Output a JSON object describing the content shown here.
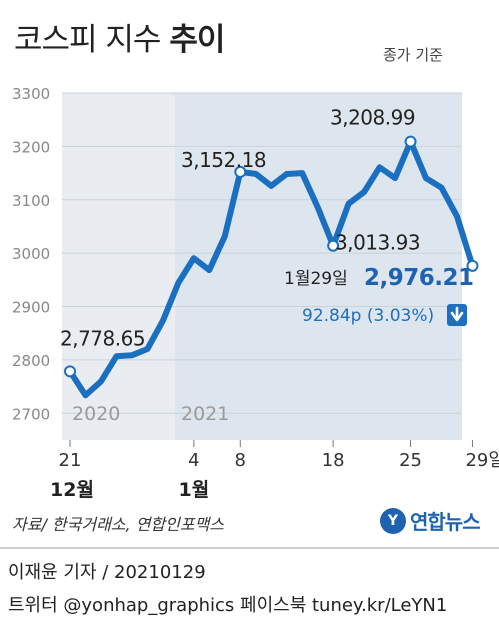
{
  "title_light": "코스피 지수",
  "title_bold": "추이",
  "subtitle": "종가 기준",
  "source": "자료/ 한국거래소, 연합인포맥스",
  "logo_text": "연합뉴스",
  "credit": "이재윤 기자 / 20210129",
  "contact": "트위터 @yonhap_graphics  페이스북 tuney.kr/LeYN1",
  "chart_data": {
    "type": "line",
    "title": "코스피 지수 추이",
    "subtitle": "종가 기준",
    "ylim": [
      2650,
      3300
    ],
    "yticks": [
      2700,
      2800,
      2900,
      3000,
      3100,
      3200,
      3300
    ],
    "x_tick_labels": [
      "21",
      "4",
      "8",
      "18",
      "25",
      "29일"
    ],
    "month_labels": [
      "12월",
      "1월"
    ],
    "year_labels": [
      "2020",
      "2021"
    ],
    "series": [
      {
        "values": [
          2778.65,
          2733.68,
          2759.82,
          2806.86,
          2808.6,
          2820.51,
          2873.47,
          2944.45,
          2990.57,
          2968.21,
          3031.68,
          3152.18,
          3148.45,
          3125.95,
          3148.29,
          3149.93,
          3085.9,
          3013.93,
          3092.66,
          3114.55,
          3160.84,
          3140.63,
          3208.99,
          3140.31,
          3122.56,
          3069.05,
          2976.21
        ]
      }
    ],
    "annotations": {
      "start_value": "2,778.65",
      "peak1_value": "3,152.18",
      "trough_value": "3,013.93",
      "peak2_value": "3,208.99",
      "last_date": "1월29일",
      "last_value": "2,976.21",
      "change": "92.84p (3.03%)",
      "change_direction": "down"
    },
    "colors": {
      "line": "#1b6fc0",
      "change_text": "#1e6fc0",
      "down_badge": "#1e6fc0"
    },
    "grid": true
  }
}
